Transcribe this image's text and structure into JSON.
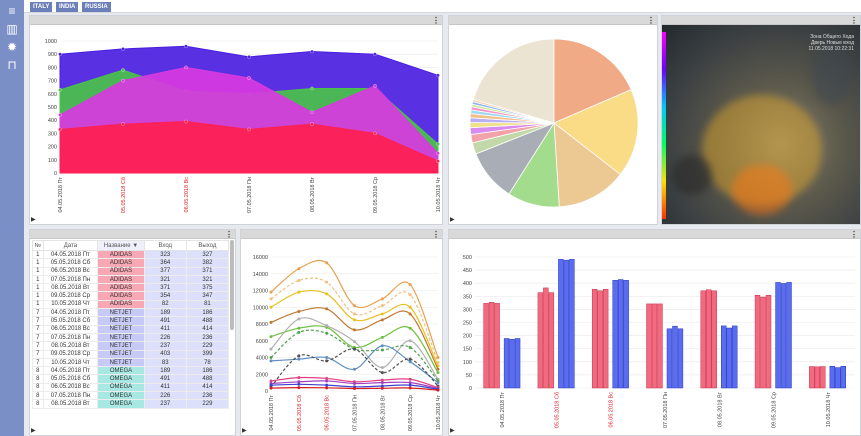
{
  "tabs": [
    "ITALY",
    "INDIA",
    "RUSSIA"
  ],
  "sidebar": [
    {
      "icon": "menu-icon",
      "glyph": "≡"
    },
    {
      "icon": "bar-chart-icon",
      "glyph": "▥"
    },
    {
      "icon": "gear-icon",
      "glyph": "✹"
    },
    {
      "icon": "lock-icon",
      "glyph": "⊓"
    }
  ],
  "chart_data": [
    {
      "type": "area",
      "categories": [
        "04.05.2018 Пт",
        "05.05.2018 Сб",
        "06.05.2018 Вс",
        "07.05.2018 Пн",
        "08.05.2018 Вт",
        "09.05.2018 Ср",
        "10.05.2018 Чт"
      ],
      "weekend": [
        false,
        true,
        true,
        false,
        false,
        false,
        false
      ],
      "ylim": [
        0,
        1000
      ],
      "yticks": [
        0,
        100,
        200,
        300,
        400,
        500,
        600,
        700,
        800,
        900,
        1000
      ],
      "series": [
        {
          "values": [
            900,
            940,
            960,
            880,
            920,
            900,
            740
          ],
          "color": "#4b1ee0"
        },
        {
          "values": [
            630,
            780,
            620,
            600,
            640,
            640,
            220
          ],
          "color": "#4ac24a"
        },
        {
          "values": [
            440,
            700,
            800,
            720,
            460,
            660,
            150
          ],
          "color": "#d83adf"
        },
        {
          "values": [
            330,
            370,
            390,
            330,
            370,
            300,
            90
          ],
          "color": "#ff1f50"
        }
      ]
    },
    {
      "type": "pie",
      "slices": [
        {
          "value": 20.5,
          "color": "#ece4d2"
        },
        {
          "value": 18.5,
          "color": "#f0aa86"
        },
        {
          "value": 17.0,
          "color": "#fadc86"
        },
        {
          "value": 13.5,
          "color": "#ecc893"
        },
        {
          "value": 10.0,
          "color": "#a4dc8e"
        },
        {
          "value": 10.0,
          "color": "#a9aeb6"
        },
        {
          "value": 2.2,
          "color": "#c2d8a8"
        },
        {
          "value": 1.6,
          "color": "#f2a2a8"
        },
        {
          "value": 1.3,
          "color": "#d88cf0"
        },
        {
          "value": 1.0,
          "color": "#f0e08a"
        },
        {
          "value": 0.9,
          "color": "#b8b0f2"
        },
        {
          "value": 0.8,
          "color": "#f3c08a"
        },
        {
          "value": 0.7,
          "color": "#9ed8f2"
        },
        {
          "value": 0.6,
          "color": "#f596c6"
        },
        {
          "value": 0.5,
          "color": "#cde7a0"
        },
        {
          "value": 0.5,
          "color": "#8ab6f0"
        },
        {
          "value": 0.4,
          "color": "#f2cca8"
        }
      ]
    },
    {
      "type": "line",
      "categories": [
        "04.05.2018 Пт",
        "05.05.2018 Сб",
        "06.05.2018 Вс",
        "07.05.2018 Пн",
        "08.05.2018 Вт",
        "09.05.2018 Ср",
        "10.05.2018 Чт"
      ],
      "weekend": [
        false,
        true,
        true,
        false,
        false,
        false,
        false
      ],
      "ylim": [
        0,
        16000
      ],
      "yticks": [
        0,
        2000,
        4000,
        6000,
        8000,
        10000,
        12000,
        14000,
        16000
      ],
      "series": [
        {
          "values": [
            11800,
            14600,
            15300,
            10200,
            11000,
            12700,
            4000
          ],
          "color": "#e8a050",
          "dash": false
        },
        {
          "values": [
            11000,
            13200,
            13000,
            9200,
            10200,
            11500,
            3400
          ],
          "color": "#f0c080",
          "dash": true
        },
        {
          "values": [
            10000,
            11800,
            11600,
            8500,
            9200,
            10000,
            3000
          ],
          "color": "#e8c020",
          "dash": false
        },
        {
          "values": [
            8200,
            9500,
            9800,
            7300,
            8500,
            9200,
            2600
          ],
          "color": "#c07830",
          "dash": false
        },
        {
          "values": [
            6500,
            7500,
            7600,
            5200,
            6400,
            7500,
            2200
          ],
          "color": "#70c040",
          "dash": false
        },
        {
          "values": [
            5000,
            8600,
            7800,
            5900,
            2800,
            6000,
            1400
          ],
          "color": "#b0b0b0",
          "dash": false
        },
        {
          "values": [
            4000,
            7000,
            6900,
            5000,
            4900,
            5200,
            1200
          ],
          "color": "#50a050",
          "dash": true
        },
        {
          "values": [
            3600,
            3800,
            4000,
            2600,
            5400,
            3500,
            1000
          ],
          "color": "#6090c0",
          "dash": false
        },
        {
          "values": [
            500,
            4200,
            3600,
            5000,
            2200,
            3800,
            600
          ],
          "color": "#505050",
          "dash": true
        },
        {
          "values": [
            1200,
            1600,
            1500,
            1100,
            1300,
            1400,
            400
          ],
          "color": "#e04080",
          "dash": false
        },
        {
          "values": [
            900,
            1100,
            1200,
            900,
            1000,
            1000,
            300
          ],
          "color": "#a040c0",
          "dash": false
        },
        {
          "values": [
            700,
            800,
            700,
            500,
            600,
            700,
            200
          ],
          "color": "#4040d0",
          "dash": false
        },
        {
          "values": [
            350,
            400,
            380,
            300,
            330,
            360,
            100
          ],
          "color": "#d02020",
          "dash": false
        }
      ]
    },
    {
      "type": "bar",
      "categories": [
        "04.05.2018 Пт",
        "05.05.2018 Сб",
        "06.05.2018 Вс",
        "07.05.2018 Пн",
        "08.05.2018 Вт",
        "09.05.2018 Ср",
        "10.05.2018 Чт"
      ],
      "weekend": [
        false,
        true,
        true,
        false,
        false,
        false,
        false
      ],
      "ylim": [
        0,
        500
      ],
      "yticks": [
        0,
        50,
        100,
        150,
        200,
        250,
        300,
        350,
        400,
        450,
        500
      ],
      "series": [
        {
          "values": [
            323,
            364,
            377,
            321,
            371,
            354,
            82
          ],
          "color": "#f26a80"
        },
        {
          "values": [
            327,
            382,
            371,
            321,
            375,
            347,
            81
          ],
          "color": "#f26a80"
        },
        {
          "values": [
            323,
            364,
            377,
            321,
            371,
            354,
            82
          ],
          "color": "#f26a80"
        },
        {
          "values": [
            189,
            491,
            411,
            226,
            237,
            403,
            83
          ],
          "color": "#5a6cf0"
        },
        {
          "values": [
            186,
            488,
            414,
            236,
            229,
            399,
            78
          ],
          "color": "#5a6cf0"
        },
        {
          "values": [
            189,
            491,
            411,
            226,
            237,
            403,
            83
          ],
          "color": "#5a6cf0"
        }
      ]
    }
  ],
  "table": {
    "headers": [
      "№",
      "Дата",
      "Название",
      "Вход",
      "Выход"
    ],
    "sort_arrow": "▼",
    "rows": [
      [
        "1",
        "04.05.2018 Пт",
        "ADIDAS",
        "323",
        "327"
      ],
      [
        "1",
        "05.05.2018 Сб",
        "ADIDAS",
        "364",
        "382"
      ],
      [
        "1",
        "06.05.2018 Вс",
        "ADIDAS",
        "377",
        "371"
      ],
      [
        "1",
        "07.05.2018 Пн",
        "ADIDAS",
        "321",
        "321"
      ],
      [
        "1",
        "08.05.2018 Вт",
        "ADIDAS",
        "371",
        "375"
      ],
      [
        "1",
        "09.05.2018 Ср",
        "ADIDAS",
        "354",
        "347"
      ],
      [
        "1",
        "10.05.2018 Чт",
        "ADIDAS",
        "82",
        "81"
      ],
      [
        "7",
        "04.05.2018 Пт",
        "NETJET",
        "189",
        "186"
      ],
      [
        "7",
        "05.05.2018 Сб",
        "NETJET",
        "491",
        "488"
      ],
      [
        "7",
        "06.05.2018 Вс",
        "NETJET",
        "411",
        "414"
      ],
      [
        "7",
        "07.05.2018 Пн",
        "NETJET",
        "226",
        "236"
      ],
      [
        "7",
        "08.05.2018 Вт",
        "NETJET",
        "237",
        "229"
      ],
      [
        "7",
        "09.05.2018 Ср",
        "NETJET",
        "403",
        "399"
      ],
      [
        "7",
        "10.05.2018 Чт",
        "NETJET",
        "83",
        "78"
      ],
      [
        "8",
        "04.05.2018 Пт",
        "OMEGA",
        "189",
        "186"
      ],
      [
        "8",
        "05.05.2018 Сб",
        "OMEGA",
        "491",
        "488"
      ],
      [
        "8",
        "06.05.2018 Вс",
        "OMEGA",
        "411",
        "414"
      ],
      [
        "8",
        "07.05.2018 Пн",
        "OMEGA",
        "226",
        "236"
      ],
      [
        "8",
        "08.05.2018 Вт",
        "OMEGA",
        "237",
        "229"
      ]
    ]
  },
  "camera": {
    "overlay_lines": [
      "Зона Общего Хода",
      "Дверь Новые вход",
      "11.05.2018 10:22:31"
    ]
  }
}
